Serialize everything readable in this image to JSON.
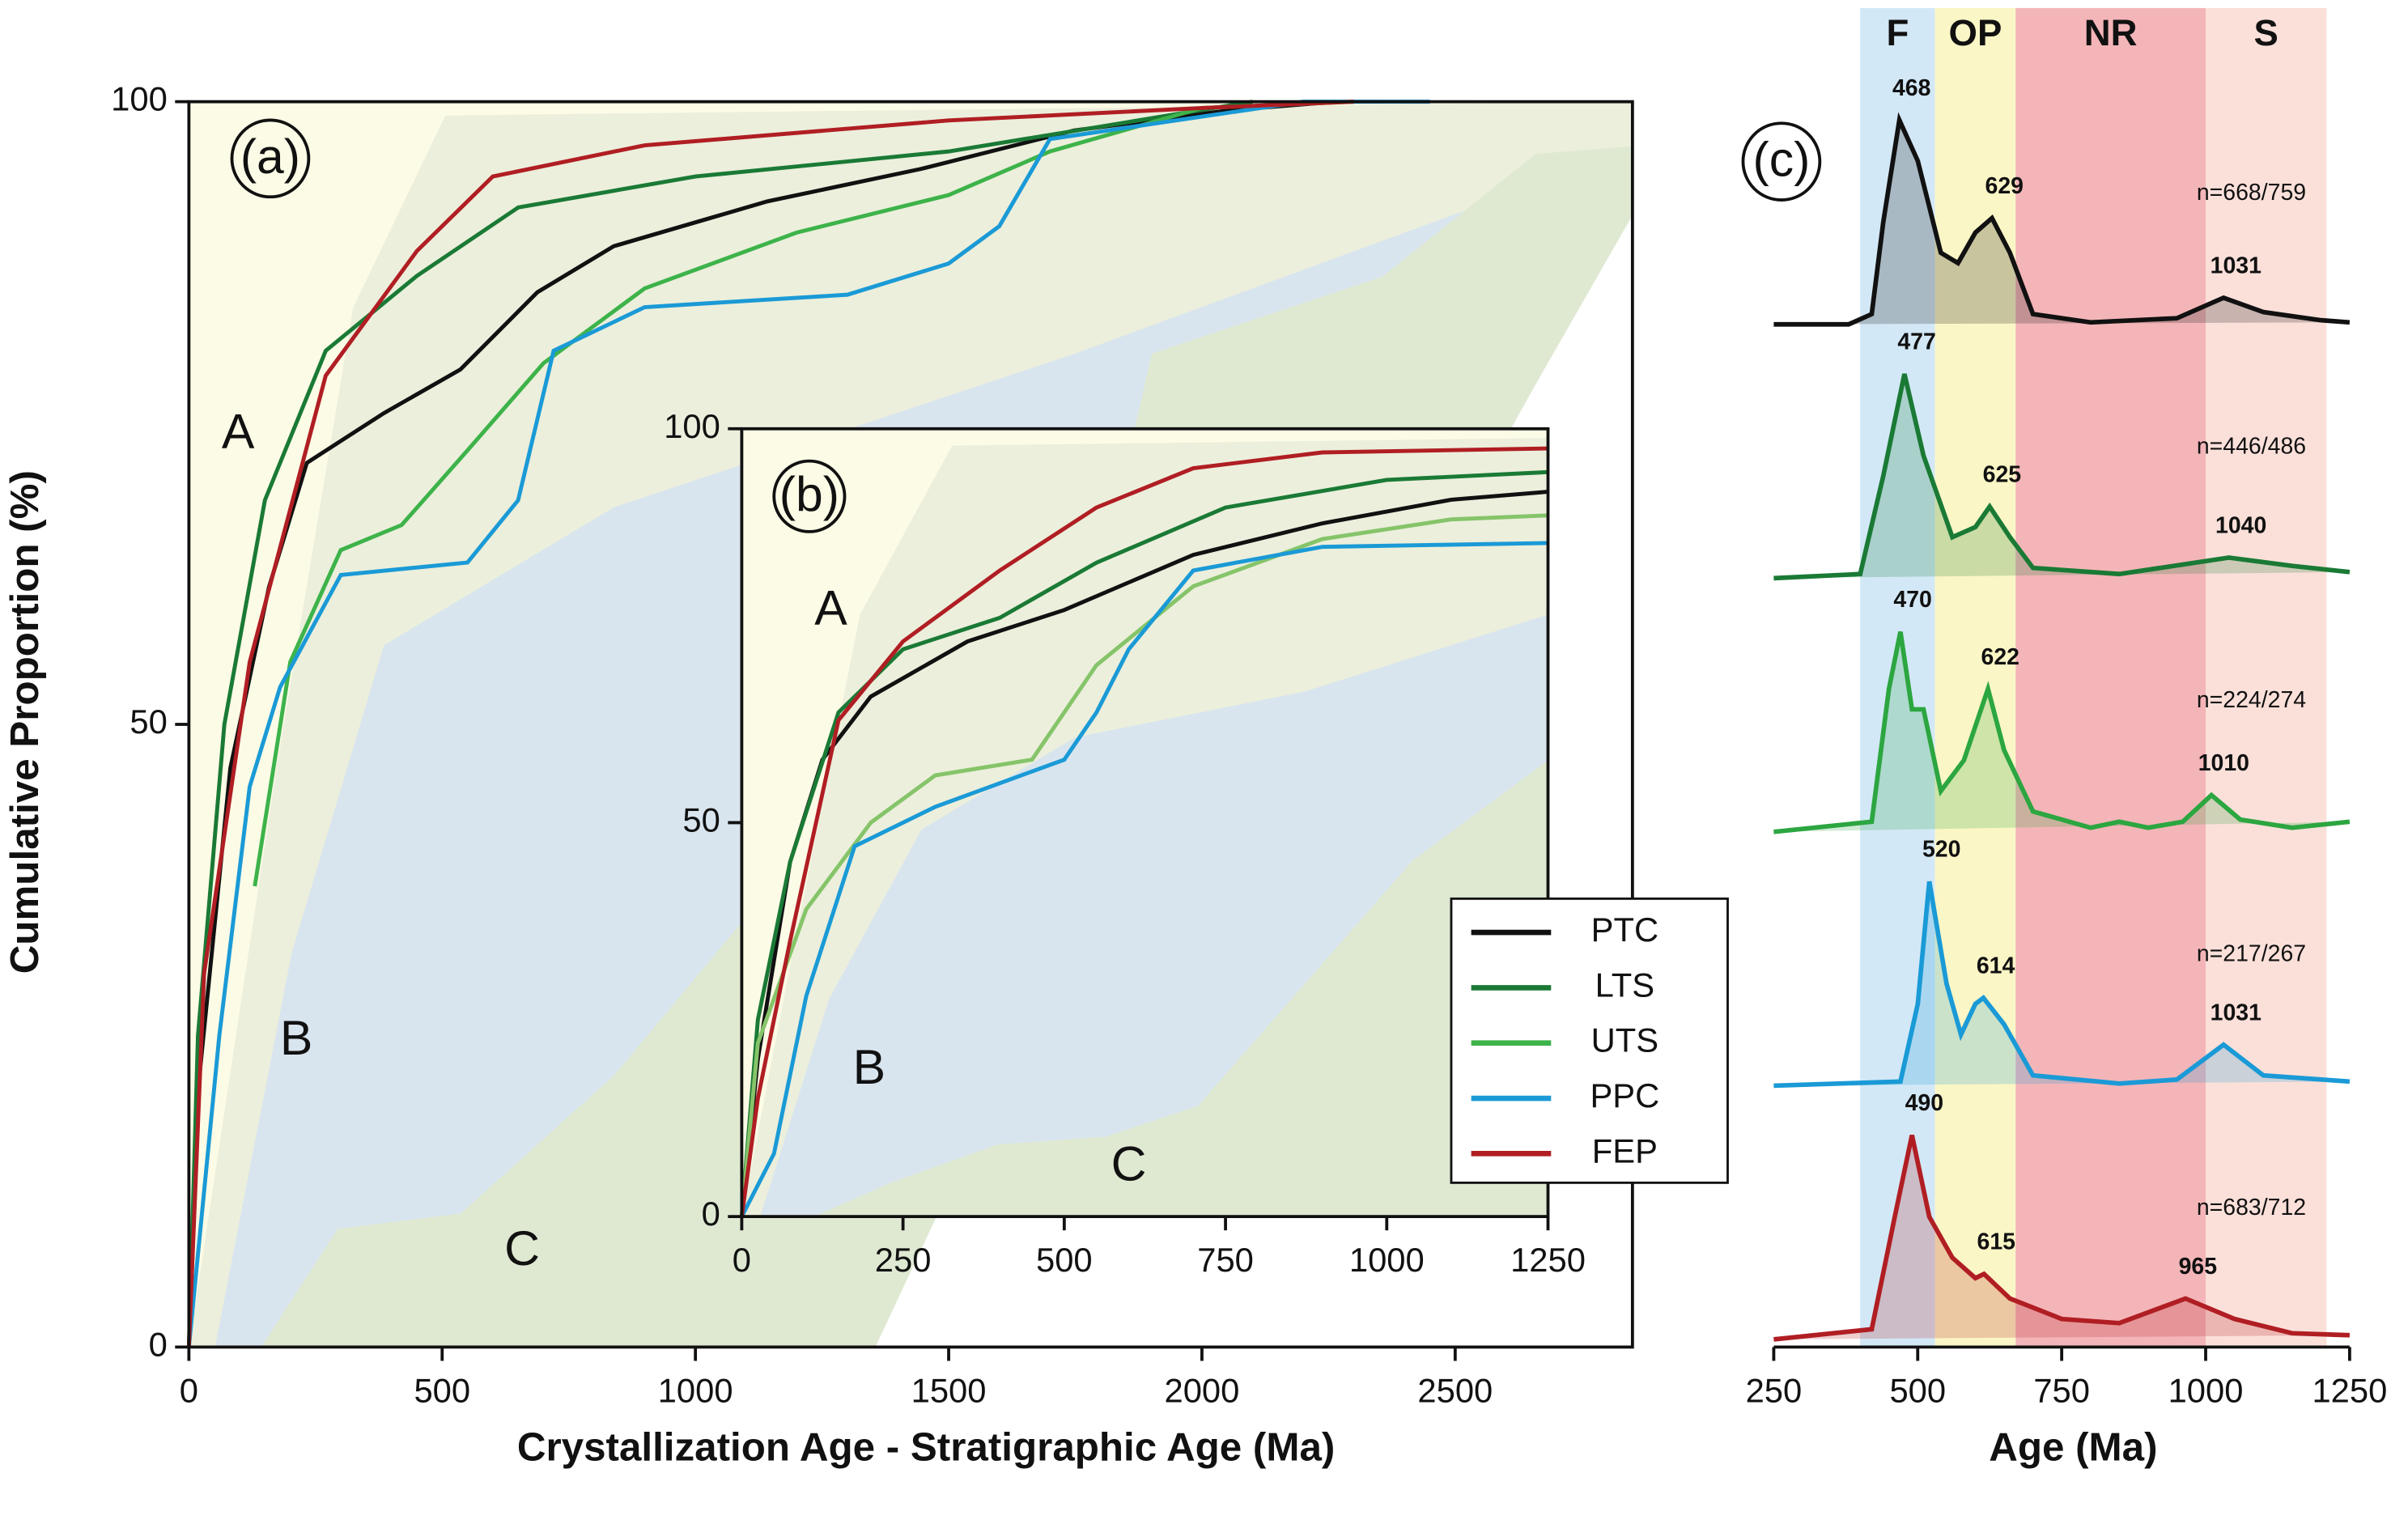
{
  "chart_data": [
    {
      "type": "line",
      "label": "(a)",
      "x_label": "Crystallization Age - Stratigraphic Age (Ma)",
      "y_label": "Cumulative Proportion (%)",
      "xlim": [
        0,
        2850
      ],
      "ylim": [
        0,
        100
      ],
      "xticks": [
        0,
        500,
        1000,
        1500,
        2000,
        2500
      ],
      "yticks": [
        0,
        50,
        100
      ],
      "annotations": [
        "A",
        "B",
        "C"
      ],
      "legend": "lower right",
      "series": [
        {
          "name": "PTC",
          "color": "#111111",
          "x": [
            0,
            21,
            82,
            158,
            233,
            385,
            536,
            688,
            839,
            1142,
            1445,
            1748,
            2052,
            2264
          ],
          "values": [
            0,
            21.8,
            46.5,
            61,
            71,
            75,
            78.5,
            84.7,
            88.4,
            92,
            94.6,
            97.7,
            99.3,
            100
          ]
        },
        {
          "name": "LTS",
          "color": "#1a7a35",
          "x": [
            0,
            18,
            70,
            150,
            270,
            450,
            650,
            1000,
            1500,
            1800,
            2100
          ],
          "values": [
            0,
            25,
            50,
            68,
            80,
            86,
            91.5,
            94,
            96,
            98,
            100
          ]
        },
        {
          "name": "UTS",
          "color": "#3db34a",
          "x": [
            130,
            200,
            300,
            420,
            550,
            700,
            900,
            1200,
            1500,
            1700,
            2000,
            2300
          ],
          "values": [
            37,
            55,
            64,
            66,
            72,
            79,
            85,
            89.5,
            92.5,
            96,
            99.5,
            100
          ]
        },
        {
          "name": "PPC",
          "color": "#1a9ad6",
          "x": [
            0,
            60,
            120,
            180,
            300,
            550,
            650,
            720,
            900,
            1300,
            1500,
            1600,
            1700,
            2200,
            2450
          ],
          "values": [
            0,
            25,
            45,
            53,
            62,
            63,
            68,
            80,
            83.5,
            84.5,
            87,
            90,
            97,
            100,
            100
          ]
        },
        {
          "name": "FEP",
          "color": "#b01e23",
          "x": [
            0,
            30,
            120,
            270,
            450,
            600,
            900,
            1500,
            2000,
            2300
          ],
          "values": [
            0,
            30,
            55,
            78,
            88,
            94,
            96.5,
            98.5,
            99.5,
            100
          ]
        }
      ]
    },
    {
      "type": "line",
      "label": "(b)",
      "xlim": [
        0,
        1250
      ],
      "ylim": [
        0,
        100
      ],
      "xticks": [
        0,
        250,
        500,
        750,
        1000,
        1250
      ],
      "yticks": [
        0,
        50,
        100
      ],
      "annotations": [
        "A",
        "B",
        "C"
      ],
      "series": [
        {
          "color": "#111111",
          "x": [
            0,
            25,
            75,
            125,
            200,
            350,
            500,
            700,
            900,
            1100,
            1250
          ],
          "values": [
            0,
            20,
            45,
            58,
            66,
            73,
            77,
            84,
            88,
            91,
            92
          ]
        },
        {
          "color": "#1a7a35",
          "x": [
            0,
            25,
            75,
            150,
            250,
            400,
            550,
            750,
            1000,
            1250
          ],
          "values": [
            0,
            25,
            45,
            64,
            72,
            76,
            83,
            90,
            93.5,
            94.5
          ]
        },
        {
          "color": "#86c46a",
          "x": [
            0,
            25,
            100,
            200,
            300,
            450,
            550,
            700,
            900,
            1100,
            1250
          ],
          "values": [
            0,
            22,
            39,
            50,
            56,
            58,
            70,
            80,
            86,
            88.5,
            89
          ]
        },
        {
          "color": "#1a9ad6",
          "x": [
            0,
            50,
            100,
            175,
            300,
            500,
            550,
            600,
            700,
            900,
            1250
          ],
          "values": [
            0,
            8,
            28,
            47,
            52,
            58,
            64,
            72,
            82,
            85,
            85.5
          ]
        },
        {
          "color": "#b01e23",
          "x": [
            0,
            25,
            75,
            150,
            250,
            400,
            550,
            700,
            900,
            1250
          ],
          "values": [
            0,
            15,
            35,
            63,
            73,
            82,
            90,
            95,
            97,
            97.5
          ]
        }
      ]
    },
    {
      "type": "density",
      "label": "(c)",
      "x_label": "Age (Ma)",
      "xlim": [
        250,
        1250
      ],
      "xticks": [
        250,
        500,
        750,
        1000,
        1250
      ],
      "bands": [
        {
          "label": "F",
          "from": 400,
          "to": 530,
          "color": "#d3e8f6"
        },
        {
          "label": "OP",
          "from": 530,
          "to": 670,
          "color": "#fbf6c6"
        },
        {
          "label": "NR",
          "from": 670,
          "to": 1000,
          "color": "#f4b5b8"
        },
        {
          "label": "S",
          "from": 1000,
          "to": 1210,
          "color": "#fbe0da"
        }
      ],
      "series": [
        {
          "color": "#111111",
          "n_label": "n=668/759",
          "peaks": [
            468,
            629,
            1031
          ],
          "x": [
            250,
            380,
            420,
            440,
            468,
            500,
            540,
            570,
            600,
            629,
            660,
            700,
            800,
            950,
            1031,
            1100,
            1200,
            1250
          ],
          "values": [
            0,
            0,
            0.05,
            0.5,
            1,
            0.8,
            0.35,
            0.3,
            0.45,
            0.52,
            0.35,
            0.05,
            0.01,
            0.03,
            0.13,
            0.06,
            0.02,
            0.01
          ]
        },
        {
          "color": "#1a7a35",
          "n_label": "n=446/486",
          "peaks": [
            477,
            625,
            1040
          ],
          "x": [
            250,
            400,
            440,
            477,
            510,
            560,
            600,
            625,
            660,
            700,
            850,
            1040,
            1150,
            1250
          ],
          "values": [
            0,
            0.02,
            0.5,
            1,
            0.6,
            0.2,
            0.25,
            0.35,
            0.2,
            0.05,
            0.02,
            0.1,
            0.06,
            0.03
          ]
        },
        {
          "color": "#2ca640",
          "n_label": "n=224/274",
          "peaks": [
            470,
            622,
            1010
          ],
          "x": [
            250,
            420,
            450,
            470,
            490,
            510,
            540,
            580,
            622,
            650,
            700,
            800,
            850,
            900,
            960,
            1010,
            1060,
            1150,
            1250
          ],
          "values": [
            0,
            0.05,
            0.7,
            0.98,
            0.6,
            0.6,
            0.2,
            0.35,
            0.7,
            0.4,
            0.1,
            0.02,
            0.05,
            0.02,
            0.05,
            0.18,
            0.06,
            0.02,
            0.05
          ]
        },
        {
          "color": "#1a9ad6",
          "n_label": "n=217/267",
          "peaks": [
            520,
            614,
            1031
          ],
          "x": [
            250,
            470,
            500,
            520,
            550,
            575,
            600,
            614,
            650,
            700,
            850,
            950,
            1031,
            1100,
            1250
          ],
          "values": [
            0,
            0.02,
            0.4,
            1,
            0.5,
            0.25,
            0.4,
            0.43,
            0.3,
            0.05,
            0.01,
            0.03,
            0.2,
            0.05,
            0.02
          ]
        },
        {
          "color": "#b01e23",
          "n_label": "n=683/712",
          "peaks": [
            490,
            615,
            965
          ],
          "x": [
            250,
            420,
            460,
            490,
            520,
            560,
            600,
            615,
            660,
            750,
            850,
            965,
            1050,
            1150,
            1250
          ],
          "values": [
            0,
            0.05,
            0.6,
            1,
            0.6,
            0.4,
            0.3,
            0.32,
            0.2,
            0.1,
            0.08,
            0.2,
            0.1,
            0.03,
            0.02
          ]
        }
      ]
    }
  ]
}
